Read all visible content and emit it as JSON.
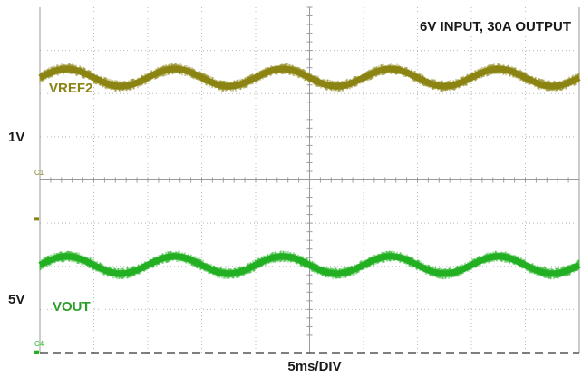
{
  "chart_data": {
    "type": "line",
    "title": "6V INPUT, 30A OUTPUT",
    "xlabel": "5ms/DIV",
    "x_divisions": 10,
    "y_divisions": 8,
    "grid": true,
    "series": [
      {
        "name": "VREF2",
        "marker": "C1",
        "scale_label": "1V",
        "color": "#8b8413",
        "waveform": "sine",
        "cycles_on_screen": 5,
        "period_divisions": 2,
        "center_divisions_above_bottom": 6.37,
        "amplitude_divisions": 0.2
      },
      {
        "name": "VOUT",
        "marker": "C4",
        "scale_label": "5V",
        "color": "#22b022",
        "waveform": "sine",
        "cycles_on_screen": 5,
        "period_divisions": 2,
        "center_divisions_above_bottom": 2.03,
        "amplitude_divisions": 0.2
      }
    ]
  }
}
